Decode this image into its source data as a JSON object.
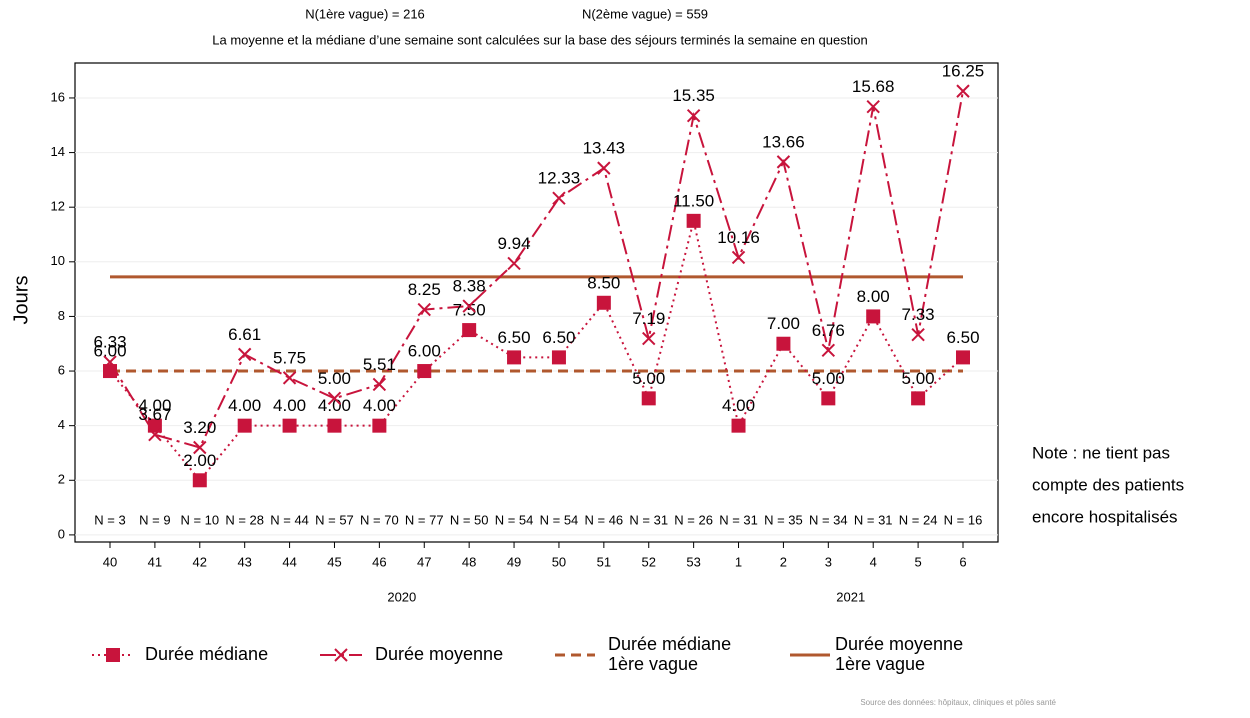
{
  "chart_data": {
    "type": "line",
    "header": [
      "N(1ère vague) = 216",
      "N(2ème vague) = 559"
    ],
    "subtitle": "La moyenne et la médiane d’une semaine sont calculées sur la base des séjours terminés la semaine en question",
    "y_label": "Jours",
    "categories": [
      "40",
      "41",
      "42",
      "43",
      "44",
      "45",
      "46",
      "47",
      "48",
      "49",
      "50",
      "51",
      "52",
      "53",
      "1",
      "2",
      "3",
      "4",
      "5",
      "6"
    ],
    "x_groups": [
      "2020",
      "2021"
    ],
    "n_labels": [
      "N = 3",
      "N = 9",
      "N = 10",
      "N = 28",
      "N = 44",
      "N = 57",
      "N = 70",
      "N = 77",
      "N = 50",
      "N = 54",
      "N = 54",
      "N = 46",
      "N = 31",
      "N = 26",
      "N = 31",
      "N = 35",
      "N = 34",
      "N = 31",
      "N = 24",
      "N = 16"
    ],
    "series": [
      {
        "name": [
          "Durée médiane"
        ],
        "color": "#c8143c",
        "marker": "square",
        "line": "dotted",
        "values": [
          6,
          4,
          2,
          4,
          4,
          4,
          4,
          6,
          7.5,
          6.5,
          6.5,
          8.5,
          5,
          11.5,
          4,
          7,
          5,
          8,
          5,
          6.5
        ],
        "value_labels": [
          "6.00",
          "4.00",
          "2.00",
          "4.00",
          "4.00",
          "4.00",
          "4.00",
          "6.00",
          "7.50",
          "6.50",
          "6.50",
          "8.50",
          "5.00",
          "11.50",
          "4.00",
          "7.00",
          "5.00",
          "8.00",
          "5.00",
          "6.50"
        ]
      },
      {
        "name": [
          "Durée moyenne"
        ],
        "color": "#c8143c",
        "marker": "x",
        "line": "dashdot",
        "values": [
          6.33,
          3.67,
          3.2,
          6.61,
          5.75,
          5,
          5.51,
          8.25,
          8.38,
          9.94,
          12.33,
          13.43,
          7.19,
          15.35,
          10.16,
          13.66,
          6.76,
          15.68,
          7.33,
          16.25
        ],
        "value_labels": [
          "6.33",
          "3.67",
          "3.20",
          "6.61",
          "5.75",
          "5.00",
          "5.51",
          "8.25",
          "8.38",
          "9.94",
          "12.33",
          "13.43",
          "7.19",
          "15.35",
          "10.16",
          "13.66",
          "6.76",
          "15.68",
          "7.33",
          "16.25"
        ]
      }
    ],
    "reference_lines": [
      {
        "name": [
          "Durée médiane",
          "1ère vague"
        ],
        "color": "#b0582e",
        "line": "dashed",
        "value": 6
      },
      {
        "name": [
          "Durée moyenne",
          "1ère vague"
        ],
        "color": "#b0582e",
        "line": "solid",
        "value": 9.45
      }
    ],
    "ylim": [
      -0.26,
      17.28
    ],
    "yticks": [
      0,
      2,
      4,
      6,
      8,
      10,
      12,
      14,
      16
    ],
    "grid": true,
    "note": [
      "Note : ne tient pas",
      "compte des patients",
      "encore hospitalisés"
    ],
    "source": "Source des données: hôpitaux, cliniques et pôles santé"
  }
}
